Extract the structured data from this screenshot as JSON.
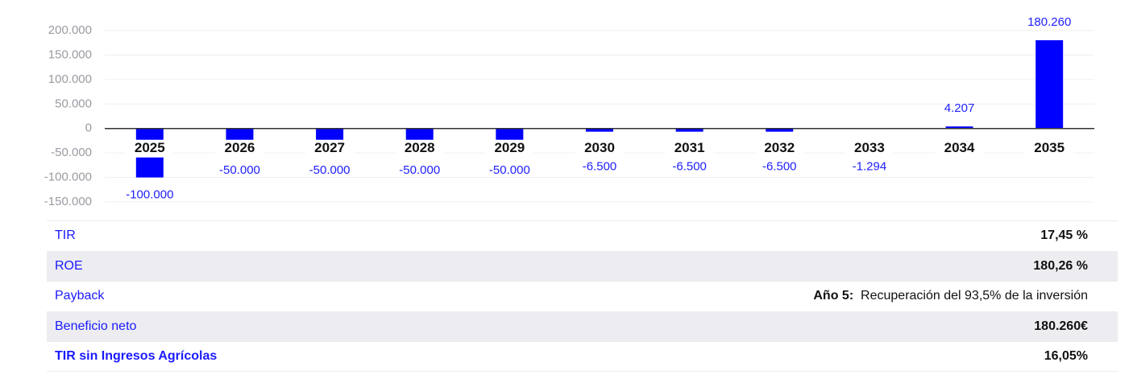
{
  "chart_data": {
    "type": "bar",
    "categories": [
      "2025",
      "2026",
      "2027",
      "2028",
      "2029",
      "2030",
      "2031",
      "2032",
      "2033",
      "2034",
      "2035"
    ],
    "values": [
      -100000,
      -50000,
      -50000,
      -50000,
      -50000,
      -6500,
      -6500,
      -6500,
      -1294,
      4207,
      180260
    ],
    "value_labels": [
      "-100.000",
      "-50.000",
      "-50.000",
      "-50.000",
      "-50.000",
      "-6.500",
      "-6.500",
      "-6.500",
      "-1.294",
      "4.207",
      "180.260"
    ],
    "color": "#0000ff",
    "ylim": [
      -150000,
      200000
    ],
    "yticks": [
      {
        "value": -150000,
        "label": "-150.000"
      },
      {
        "value": -100000,
        "label": "-100.000"
      },
      {
        "value": -50000,
        "label": "-50.000"
      },
      0,
      {
        "value": 50000,
        "label": "50.000"
      },
      {
        "value": 100000,
        "label": "100.000"
      },
      {
        "value": 150000,
        "label": "150.000"
      },
      {
        "value": 200000,
        "label": "200.000"
      }
    ],
    "grid": true
  },
  "table": {
    "rows": [
      {
        "label": "TIR",
        "value": "17,45 %"
      },
      {
        "label": "ROE",
        "value": "180,26 %"
      },
      {
        "label": "Payback",
        "value_bold": "Año 5:",
        "value": "Recuperación del 93,5% de la inversión"
      },
      {
        "label": "Beneficio neto",
        "value": "180.260€"
      },
      {
        "label": "TIR sin Ingresos Agrícolas",
        "value": "16,05%"
      }
    ]
  }
}
